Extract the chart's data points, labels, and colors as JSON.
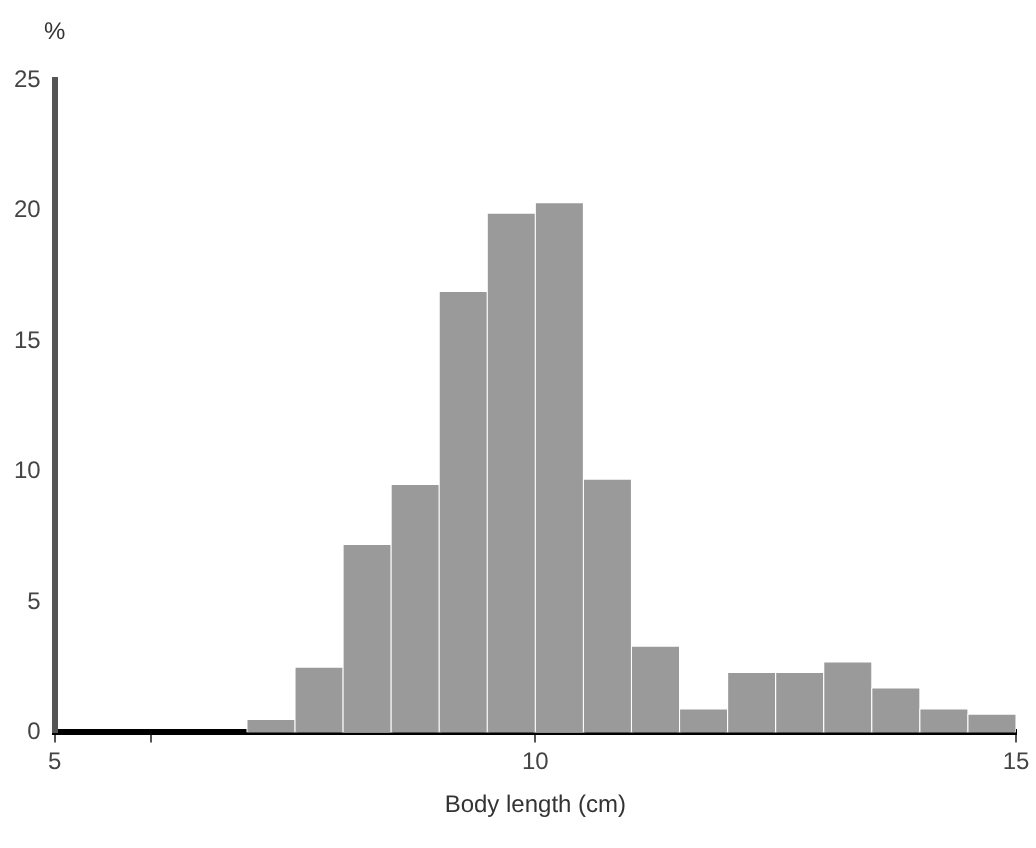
{
  "chart_data": {
    "type": "histogram",
    "xlabel": "Body length (cm)",
    "ylabel": "%",
    "bins": [
      7,
      7.5,
      8,
      8.5,
      9,
      9.5,
      10,
      10.5,
      11,
      11.5,
      12,
      12.5,
      13,
      13.5,
      14,
      14.5,
      15
    ],
    "values": [
      0.5,
      2.5,
      7.2,
      9.5,
      16.9,
      19.9,
      20.3,
      9.7,
      3.3,
      0.9,
      2.3,
      2.3,
      2.7,
      1.7,
      0.9,
      0.7
    ],
    "color": "#9a9a9a",
    "xlim": [
      5,
      15
    ],
    "xticks": [
      5,
      {
        "value": 6,
        "label": null
      },
      10,
      15
    ],
    "ylim": [
      0,
      25
    ],
    "yticks": [
      0,
      5,
      10,
      15,
      20,
      25
    ],
    "grid": false,
    "legend": false
  }
}
